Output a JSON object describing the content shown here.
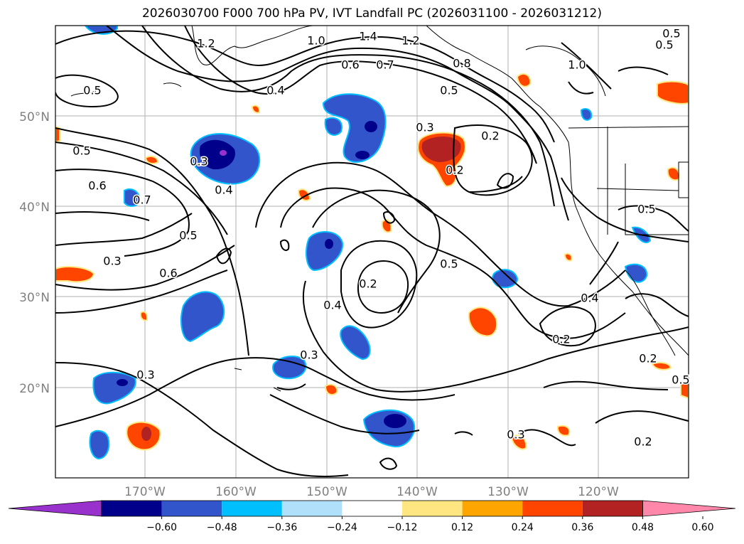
{
  "title": "2026030700 F000 700 hPa PV, IVT Landfall PC (2026031100 - 2026031212)",
  "map": {
    "lon_range": [
      -180,
      -110
    ],
    "lat_range": [
      10,
      60
    ],
    "lon_labels": [
      "170°W",
      "160°W",
      "150°W",
      "140°W",
      "130°W",
      "120°W"
    ],
    "lat_labels": [
      "20°N",
      "30°N",
      "40°N",
      "50°N"
    ],
    "contour_labels": [
      "1.2",
      "1.0",
      "1.4",
      "1.2",
      "0.6",
      "0.7",
      "0.8",
      "1.0",
      "0.5",
      "0.5",
      "0.5",
      "0.4",
      "0.5",
      "0.3",
      "0.2",
      "0.3",
      "0.6",
      "0.7",
      "0.4",
      "0.5",
      "0.2",
      "0.4",
      "0.6",
      "0.3",
      "0.2",
      "0.5",
      "0.4",
      "0.5",
      "0.3",
      "0.2",
      "0.3",
      "0.2",
      "0.3",
      "0.2",
      "0.5",
      "0.5"
    ]
  },
  "colorbar": {
    "ticks": [
      "−0.60",
      "−0.48",
      "−0.36",
      "−0.24",
      "−0.12",
      "0.12",
      "0.24",
      "0.36",
      "0.48",
      "0.60"
    ],
    "colors": [
      "#9932cc",
      "#00008b",
      "#3355cc",
      "#00bfff",
      "#b0e0fa",
      "#ffffff",
      "#ffe680",
      "#ffa500",
      "#ff4500",
      "#b22222",
      "#ff88aa"
    ]
  }
}
